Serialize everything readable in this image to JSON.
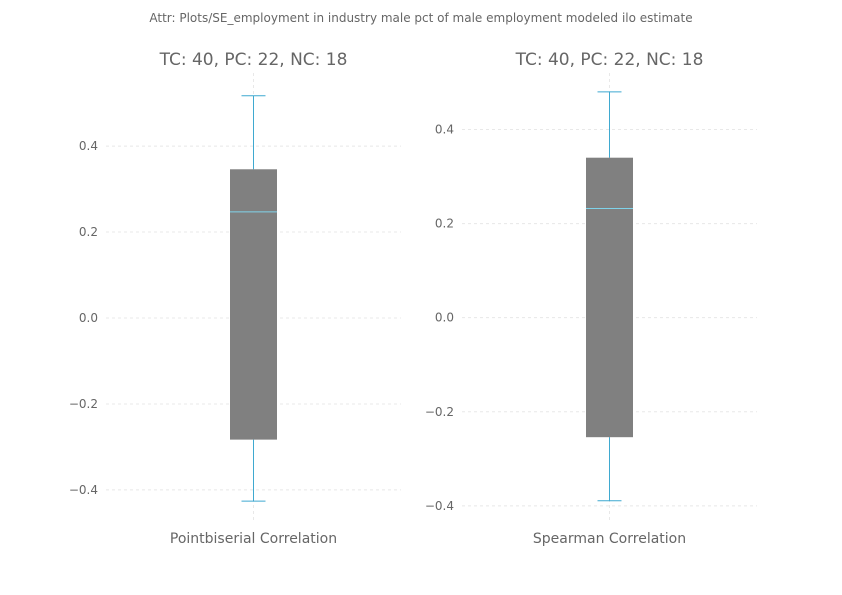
{
  "page_title": "Attr: Plots/SE_employment in industry male pct of male employment modeled ilo estimate",
  "colors": {
    "box_fill": "#808080",
    "whisker": "#3fa9d0",
    "median": "#7fd3ea",
    "text": "#666666",
    "grid": "#e8e8e8"
  },
  "chart_data": [
    {
      "type": "box",
      "title": "TC: 40, PC: 22, NC: 18",
      "category": "Pointbiserial Correlation",
      "ylim": [
        -0.47,
        0.57
      ],
      "yticks": [
        -0.4,
        -0.2,
        0.0,
        0.2,
        0.4
      ],
      "ytick_labels": [
        "−0.4",
        "−0.2",
        "0.0",
        "0.2",
        "0.4"
      ],
      "grid": true,
      "box": {
        "whisker_low": -0.426,
        "q1": -0.283,
        "median": 0.247,
        "q3": 0.346,
        "whisker_high": 0.517
      }
    },
    {
      "type": "box",
      "title": "TC: 40, PC: 22, NC: 18",
      "category": "Spearman Correlation",
      "ylim": [
        -0.43,
        0.52
      ],
      "yticks": [
        -0.4,
        -0.2,
        0.0,
        0.2,
        0.4
      ],
      "ytick_labels": [
        "−0.4",
        "−0.2",
        "0.0",
        "0.2",
        "0.4"
      ],
      "grid": true,
      "box": {
        "whisker_low": -0.389,
        "q1": -0.254,
        "median": 0.232,
        "q3": 0.34,
        "whisker_high": 0.48
      }
    }
  ]
}
